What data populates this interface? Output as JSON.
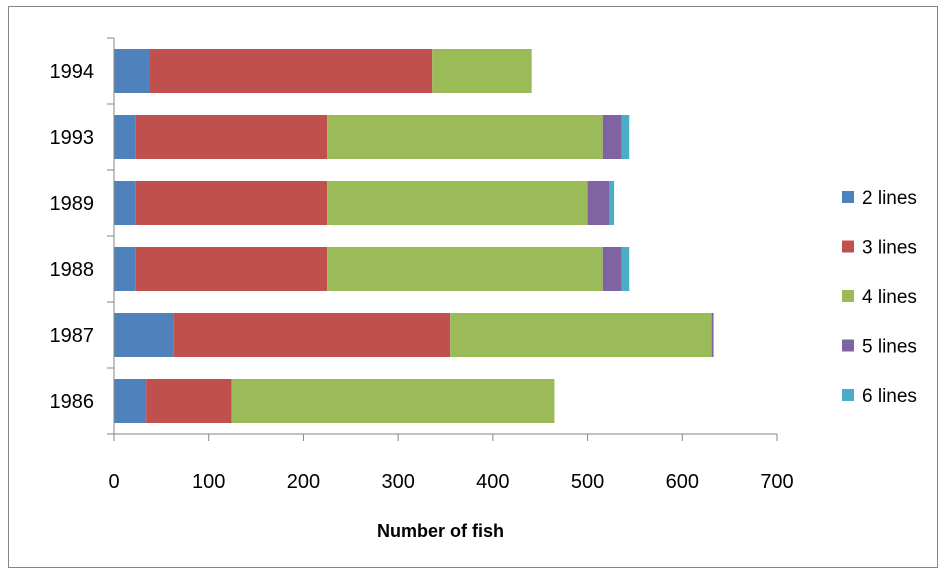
{
  "chart_data": {
    "type": "bar",
    "orientation": "horizontal",
    "stacked": true,
    "categories": [
      "1994",
      "1993",
      "1989",
      "1988",
      "1987",
      "1986"
    ],
    "series": [
      {
        "name": "2 lines",
        "color": "#4f81bd",
        "values": [
          38,
          23,
          23,
          23,
          63,
          34
        ]
      },
      {
        "name": "3 lines",
        "color": "#c0504d",
        "values": [
          298,
          202,
          202,
          202,
          292,
          90
        ]
      },
      {
        "name": "4 lines",
        "color": "#9bbb59",
        "values": [
          105,
          291,
          275,
          291,
          276,
          341
        ]
      },
      {
        "name": "5 lines",
        "color": "#8064a2",
        "values": [
          0,
          20,
          23,
          20,
          2,
          0
        ]
      },
      {
        "name": "6 lines",
        "color": "#4bacc6",
        "values": [
          0,
          8,
          5,
          8,
          0,
          0
        ]
      }
    ],
    "x_ticks": [
      "0",
      "100",
      "200",
      "300",
      "400",
      "500",
      "600",
      "700"
    ],
    "xlim": [
      0,
      700
    ],
    "xlabel": "Number of fish",
    "ylabel": "",
    "title": "",
    "grid": false,
    "legend_position": "right"
  }
}
